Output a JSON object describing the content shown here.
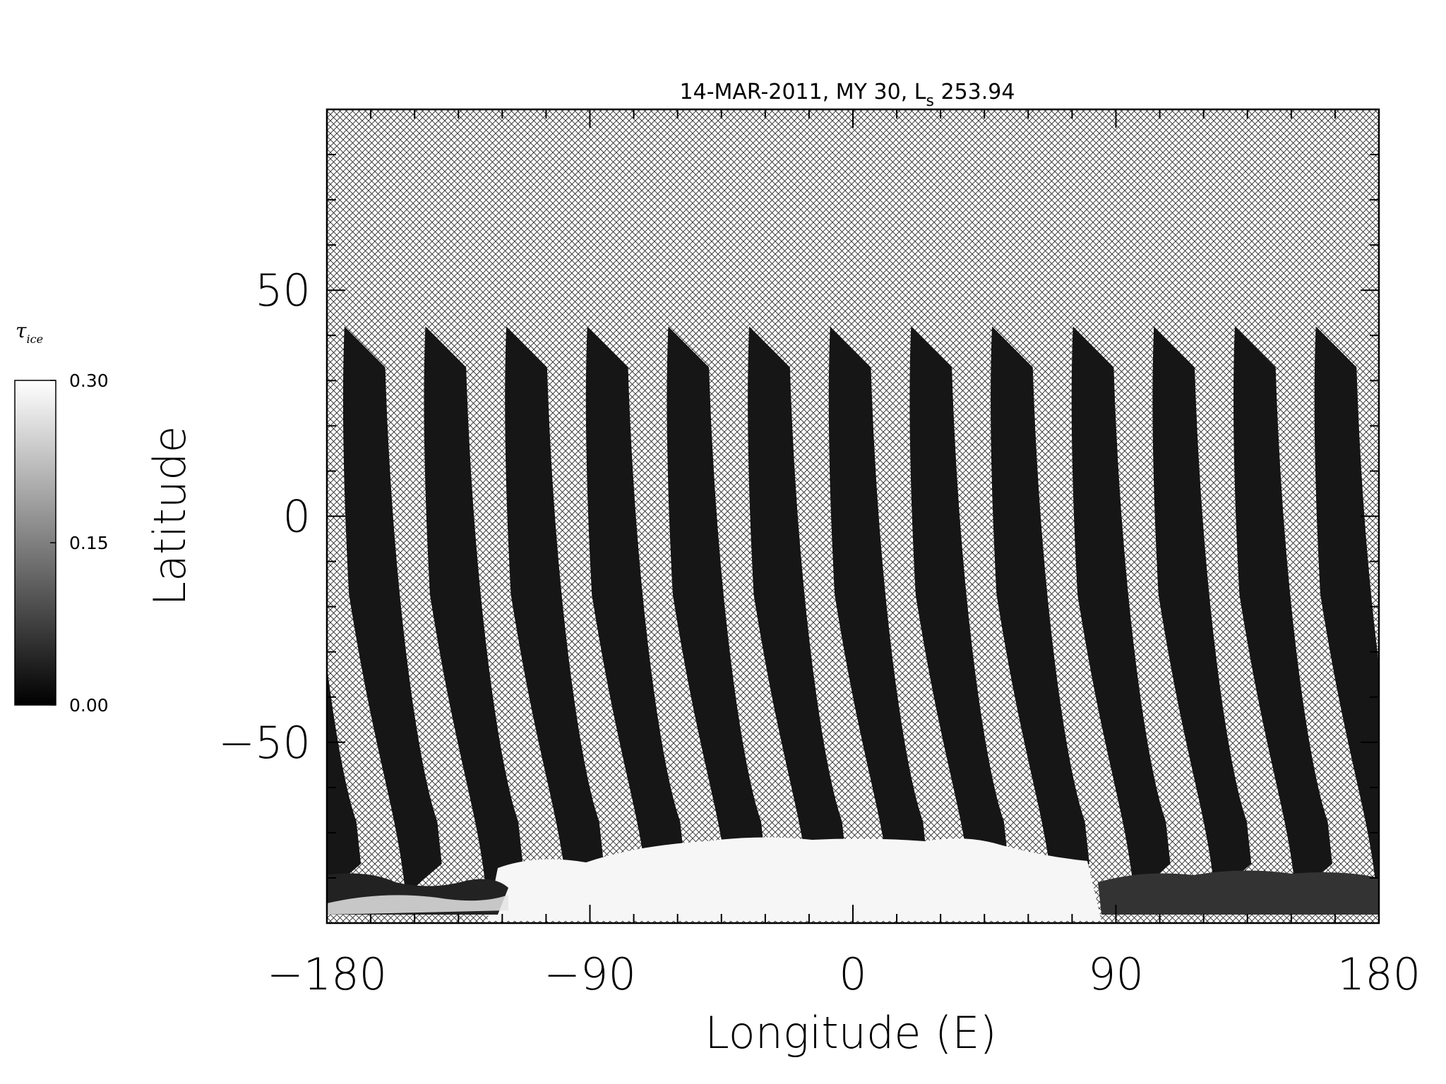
{
  "chart_data": {
    "type": "heatmap",
    "title": "14-MAR-2011, MY 30,  L",
    "title_subscript": "s",
    "title_value": " 253.94",
    "xlabel": "Longitude (E)",
    "ylabel": "Latitude",
    "xlim": [
      -180,
      180
    ],
    "ylim": [
      -90,
      90
    ],
    "x_ticks": [
      -180,
      -90,
      0,
      90,
      180
    ],
    "x_tick_labels": [
      "−180",
      "−90",
      "0",
      "90",
      "180"
    ],
    "y_ticks": [
      -50,
      0,
      50
    ],
    "y_tick_labels": [
      "−50",
      "0",
      "50"
    ],
    "colorbar": {
      "label": "τ",
      "label_subscript": "ice",
      "min": 0.0,
      "max": 0.3,
      "ticks": [
        0.0,
        0.15,
        0.3
      ],
      "tick_labels": [
        "0.00",
        "0.15",
        "0.30"
      ],
      "colormap": "grayscale"
    },
    "no_data_fill": "crosshatch",
    "orbit_swaths": {
      "count": 13,
      "spacing_deg_lon": 27.7,
      "lat_top": 42,
      "lat_bottom": -80,
      "value": 0.01
    },
    "south_polar_region": {
      "lat_max": -72,
      "value": 0.3
    }
  },
  "colors": {
    "background": "#ffffff",
    "swath": "#161616",
    "hatch": "#2a2a2a",
    "ice_cap": "#f6f6f6"
  }
}
